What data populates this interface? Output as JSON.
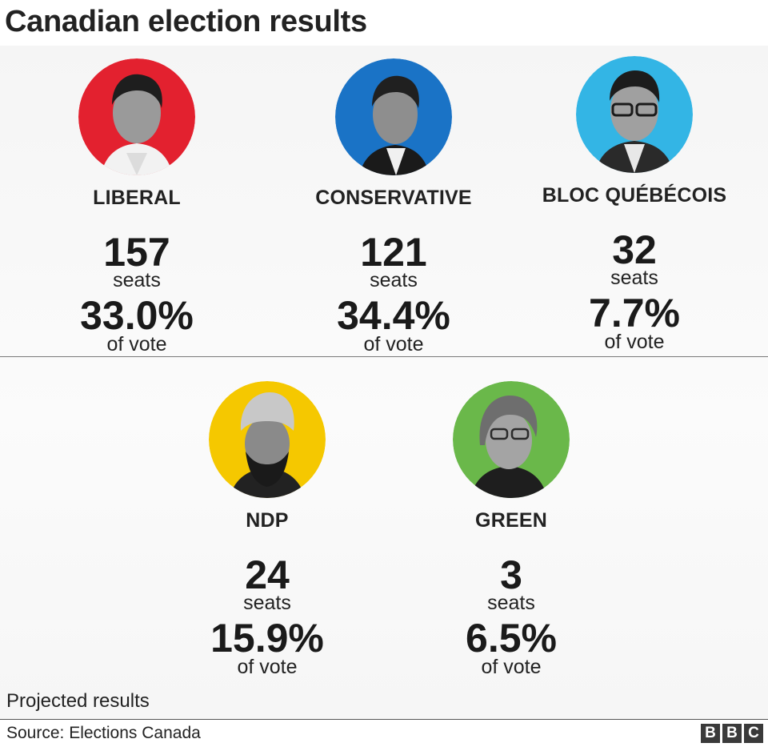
{
  "title": "Canadian election results",
  "parties": [
    {
      "name": "LIBERAL",
      "seats": "157",
      "seats_label": "seats",
      "vote": "33.0%",
      "vote_label": "of vote",
      "color": "#e3212f"
    },
    {
      "name": "CONSERVATIVE",
      "seats": "121",
      "seats_label": "seats",
      "vote": "34.4%",
      "vote_label": "of vote",
      "color": "#1a73c6"
    },
    {
      "name": "BLOC QUÉBÉCOIS",
      "seats": "32",
      "seats_label": "seats",
      "vote": "7.7%",
      "vote_label": "of vote",
      "color": "#33b5e5"
    },
    {
      "name": "NDP",
      "seats": "24",
      "seats_label": "seats",
      "vote": "15.9%",
      "vote_label": "of vote",
      "color": "#f5c800"
    },
    {
      "name": "GREEN",
      "seats": "3",
      "seats_label": "seats",
      "vote": "6.5%",
      "vote_label": "of vote",
      "color": "#6ab84a"
    }
  ],
  "note": "Projected results",
  "source": "Source: Elections Canada",
  "logo": [
    "B",
    "B",
    "C"
  ]
}
